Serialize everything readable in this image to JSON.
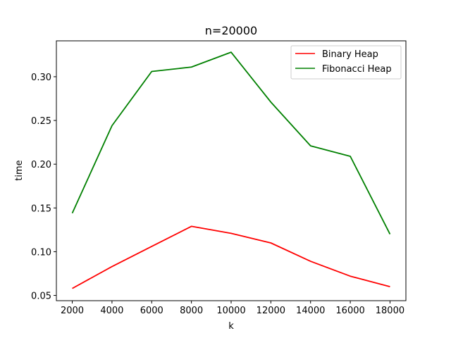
{
  "chart_data": {
    "type": "line",
    "title": "n=20000",
    "xlabel": "k",
    "ylabel": "time",
    "x": [
      2000,
      4000,
      6000,
      8000,
      10000,
      12000,
      14000,
      16000,
      18000
    ],
    "xlim": [
      1200,
      18800
    ],
    "ylim": [
      0.044,
      0.341
    ],
    "xticks": [
      2000,
      4000,
      6000,
      8000,
      10000,
      12000,
      14000,
      16000,
      18000
    ],
    "yticks": [
      0.05,
      0.1,
      0.15,
      0.2,
      0.25,
      0.3
    ],
    "xtick_labels": [
      "2000",
      "4000",
      "6000",
      "8000",
      "10000",
      "12000",
      "14000",
      "16000",
      "18000"
    ],
    "ytick_labels": [
      "0.05",
      "0.10",
      "0.15",
      "0.20",
      "0.25",
      "0.30"
    ],
    "grid": false,
    "legend_position": "top-right",
    "series": [
      {
        "name": "Binary Heap",
        "color": "#ff0000",
        "values": [
          0.058,
          0.083,
          0.106,
          0.129,
          0.121,
          0.11,
          0.089,
          0.072,
          0.06
        ]
      },
      {
        "name": "Fibonacci Heap",
        "color": "#008000",
        "values": [
          0.144,
          0.244,
          0.306,
          0.311,
          0.328,
          0.271,
          0.221,
          0.209,
          0.12
        ]
      }
    ]
  }
}
